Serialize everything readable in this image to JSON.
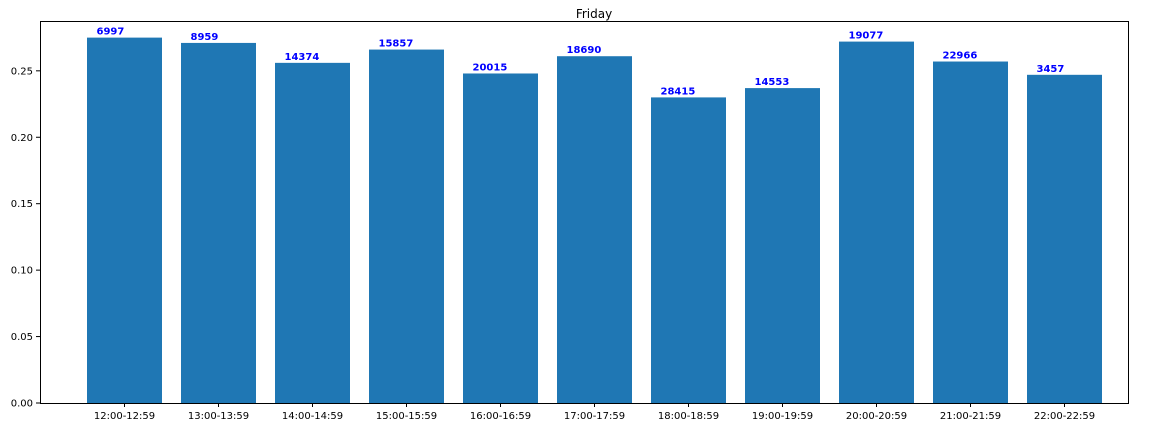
{
  "chart_data": {
    "type": "bar",
    "title": "Friday",
    "xlabel": "",
    "ylabel": "",
    "categories": [
      "12:00-12:59",
      "13:00-13:59",
      "14:00-14:59",
      "15:00-15:59",
      "16:00-16:59",
      "17:00-17:59",
      "18:00-18:59",
      "19:00-19:59",
      "20:00-20:59",
      "21:00-21:59",
      "22:00-22:59"
    ],
    "values": [
      0.275,
      0.271,
      0.256,
      0.266,
      0.248,
      0.261,
      0.23,
      0.237,
      0.272,
      0.257,
      0.247
    ],
    "data_labels": [
      "6997",
      "8959",
      "14374",
      "15857",
      "20015",
      "18690",
      "28415",
      "14553",
      "19077",
      "22966",
      "3457"
    ],
    "ylim": [
      0,
      0.2875
    ],
    "yticks": [
      0.0,
      0.05,
      0.1,
      0.15,
      0.2,
      0.25
    ],
    "ytick_labels": [
      "0.00",
      "0.05",
      "0.10",
      "0.15",
      "0.20",
      "0.25"
    ],
    "grid": false,
    "bar_color": "#1f77b4",
    "label_color": "#0000ff"
  }
}
